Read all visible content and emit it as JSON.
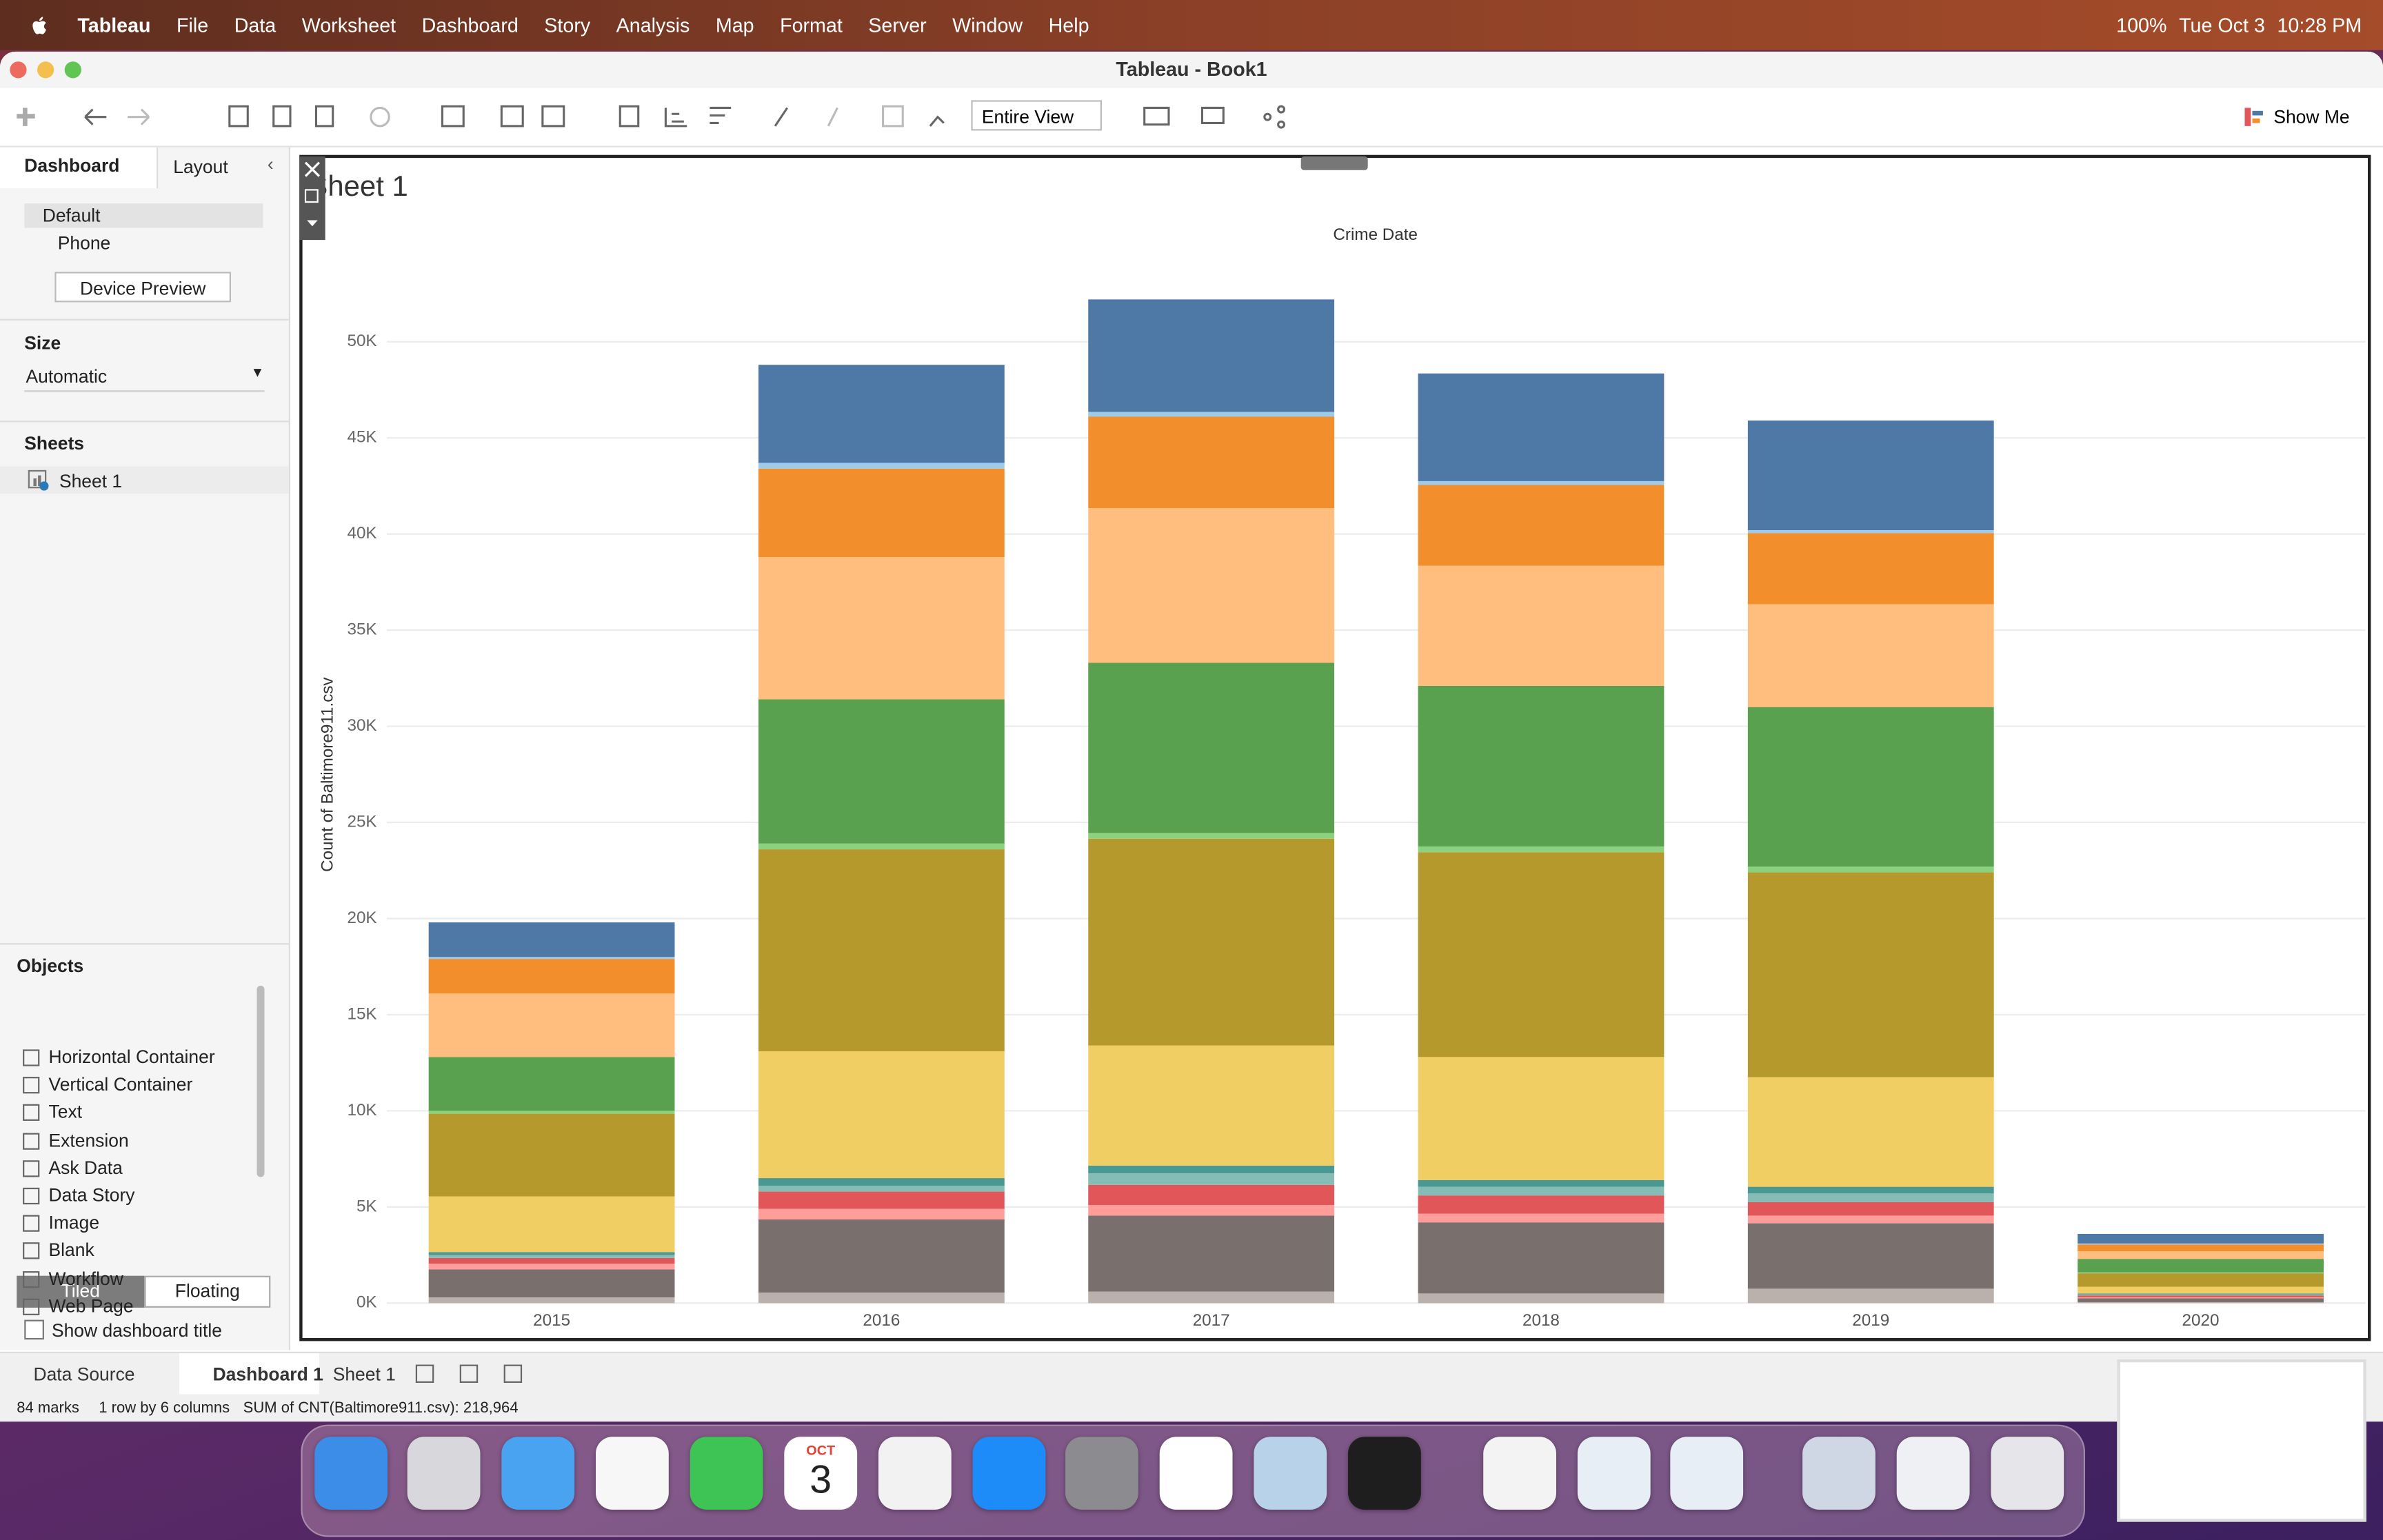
{
  "menu_bar": {
    "app": "Tableau",
    "menus": [
      "File",
      "Data",
      "Worksheet",
      "Dashboard",
      "Story",
      "Analysis",
      "Map",
      "Format",
      "Server",
      "Window",
      "Help"
    ],
    "status": [
      "100%",
      "Tue Oct 3",
      "10:28 PM"
    ]
  },
  "window": {
    "title": "Tableau - Book1"
  },
  "toolbar": {
    "view": "Entire View",
    "show_me": "Show Me"
  },
  "side_panel": {
    "tabs": [
      "Dashboard",
      "Layout"
    ],
    "devices": [
      "Default",
      "Phone"
    ],
    "device_preview": "Device Preview",
    "size_heading": "Size",
    "size_value": "Automatic",
    "sheets_heading": "Sheets",
    "sheets": [
      "Sheet 1"
    ],
    "objects_heading": "Objects",
    "objects": [
      "Horizontal Container",
      "Vertical Container",
      "Text",
      "Extension",
      "Ask Data",
      "Data Story",
      "Image",
      "Blank",
      "Workflow",
      "Web Page"
    ],
    "layout_modes": [
      "Tiled",
      "Floating"
    ],
    "show_title": "Show dashboard title"
  },
  "chart_data": {
    "type": "stacked_bar",
    "title": "Sheet 1",
    "x_label": "Crime Date",
    "y_label": "Count of Baltimore911.csv",
    "categories": [
      "2015",
      "2016",
      "2017",
      "2018",
      "2019",
      "2020"
    ],
    "series": [
      {
        "color": "#bab0ac",
        "values": [
          300,
          550,
          600,
          500,
          750,
          50
        ]
      },
      {
        "color": "#79706e",
        "values": [
          1450,
          3800,
          3950,
          3700,
          3400,
          200
        ]
      },
      {
        "color": "#ff9d9a",
        "values": [
          300,
          550,
          550,
          450,
          400,
          50
        ]
      },
      {
        "color": "#e15759",
        "values": [
          300,
          900,
          1050,
          950,
          700,
          100
        ]
      },
      {
        "color": "#86bcb6",
        "values": [
          150,
          300,
          600,
          450,
          450,
          50
        ]
      },
      {
        "color": "#499894",
        "values": [
          150,
          400,
          400,
          350,
          350,
          50
        ]
      },
      {
        "color": "#f1ce63",
        "values": [
          2900,
          6600,
          6250,
          6400,
          5700,
          350
        ]
      },
      {
        "color": "#b6992d",
        "values": [
          4300,
          10500,
          10750,
          10650,
          10650,
          700
        ]
      },
      {
        "color": "#8cd17d",
        "values": [
          150,
          300,
          300,
          300,
          300,
          50
        ]
      },
      {
        "color": "#59a14f",
        "values": [
          2800,
          7500,
          8850,
          8350,
          8300,
          700
        ]
      },
      {
        "color": "#ffbe7d",
        "values": [
          3300,
          7400,
          8050,
          6250,
          5350,
          400
        ]
      },
      {
        "color": "#f28e2b",
        "values": [
          1800,
          4600,
          4750,
          4200,
          3700,
          350
        ]
      },
      {
        "color": "#a0cbe8",
        "values": [
          100,
          300,
          250,
          200,
          150,
          50
        ]
      },
      {
        "color": "#4e79a7",
        "values": [
          1800,
          5100,
          5850,
          5600,
          5700,
          500
        ]
      }
    ],
    "ylim": [
      0,
      54700
    ],
    "yticks": [
      {
        "value": 0,
        "label": "0K"
      },
      {
        "value": 5000,
        "label": "5K"
      },
      {
        "value": 10000,
        "label": "10K"
      },
      {
        "value": 15000,
        "label": "15K"
      },
      {
        "value": 20000,
        "label": "20K"
      },
      {
        "value": 25000,
        "label": "25K"
      },
      {
        "value": 30000,
        "label": "30K"
      },
      {
        "value": 35000,
        "label": "35K"
      },
      {
        "value": 40000,
        "label": "40K"
      },
      {
        "value": 45000,
        "label": "45K"
      },
      {
        "value": 50000,
        "label": "50K"
      }
    ],
    "grid": true
  },
  "sheet_tabs": [
    "Data Source",
    "Dashboard 1",
    "Sheet 1"
  ],
  "status_bar": [
    "84 marks",
    "1 row by 6 columns",
    "SUM of CNT(Baltimore911.csv): 218,964"
  ],
  "dock": {
    "calendar_month": "OCT",
    "calendar_day": "3"
  }
}
